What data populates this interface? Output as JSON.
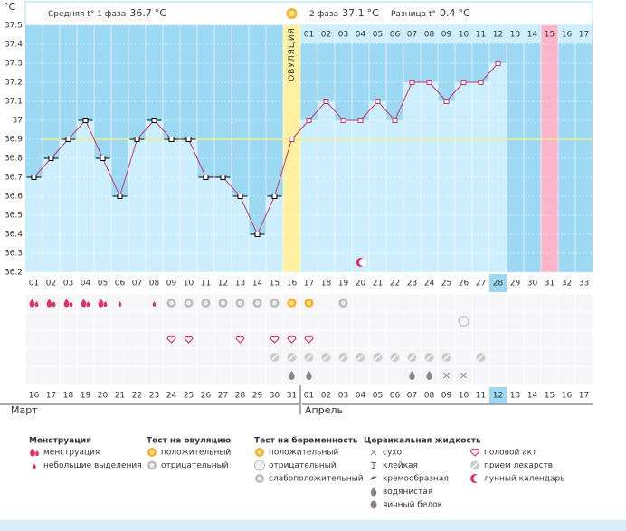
{
  "header": {
    "phase1_label": "Средняя t° 1 фаза",
    "phase1_avg": 36.7,
    "unit": "°C",
    "phase2_label": "2 фаза",
    "phase2_avg": 37.1,
    "diff_label": "Разница t°",
    "diff": 0.4
  },
  "chart_data": {
    "type": "line",
    "ylabel": "°C",
    "categories": [
      "01",
      "02",
      "03",
      "04",
      "05",
      "06",
      "07",
      "08",
      "09",
      "10",
      "11",
      "12",
      "13",
      "14",
      "15",
      "16",
      "17",
      "18",
      "19",
      "20",
      "21",
      "22",
      "23",
      "24",
      "25",
      "26",
      "27",
      "28",
      "29",
      "30",
      "31",
      "32",
      "33"
    ],
    "series": [
      {
        "name": "t°",
        "color": "#cc3366",
        "values": [
          36.7,
          36.8,
          36.9,
          37.0,
          36.8,
          36.6,
          36.9,
          37.0,
          36.9,
          36.9,
          36.7,
          36.7,
          36.6,
          36.4,
          36.6,
          36.9,
          37.0,
          37.1,
          37.0,
          37.0,
          37.1,
          37.0,
          37.2,
          37.2,
          37.1,
          37.2,
          37.2,
          37.3,
          null,
          null,
          null,
          null,
          null
        ]
      }
    ],
    "ylim": [
      36.2,
      37.5
    ],
    "yticks": [
      36.2,
      36.3,
      36.4,
      36.5,
      36.6,
      36.7,
      36.8,
      36.9,
      37,
      37.1,
      37.2,
      37.3,
      37.4,
      37.5
    ],
    "coverline": 36.9,
    "grid": true,
    "ovulation_label": "ОВУЛЯЦИЯ",
    "phase2_days": [
      "01",
      "02",
      "03",
      "04",
      "05",
      "06",
      "07",
      "08",
      "09",
      "10",
      "11",
      "12",
      "13",
      "14",
      "15",
      "16",
      "17"
    ],
    "dates": [
      "16",
      "17",
      "18",
      "19",
      "20",
      "21",
      "22",
      "23",
      "24",
      "25",
      "26",
      "27",
      "28",
      "29",
      "30",
      "31",
      "01",
      "02",
      "03",
      "04",
      "05",
      "06",
      "07",
      "08",
      "09",
      "10",
      "11",
      "12",
      "13",
      "14",
      "15",
      "16",
      "17"
    ],
    "months": [
      "Март",
      "Апрель"
    ]
  },
  "legend": [
    {
      "title": "Менструация",
      "items": [
        "менструация",
        "небольшие выделения"
      ]
    },
    {
      "title": "Тест на овуляцию",
      "items": [
        "положительный",
        "отрицательный"
      ]
    },
    {
      "title": "Тест на беременность",
      "items": [
        "положительный",
        "отрицательный",
        "слабоположительный"
      ]
    },
    {
      "title": "Цервикальная жидкость",
      "items": [
        "сухо",
        "клейкая",
        "кремообразная",
        "водянистая",
        "яичный белок"
      ]
    },
    {
      "title": "",
      "items": [
        "половой акт",
        "прием лекарств",
        "лунный календарь"
      ]
    }
  ]
}
